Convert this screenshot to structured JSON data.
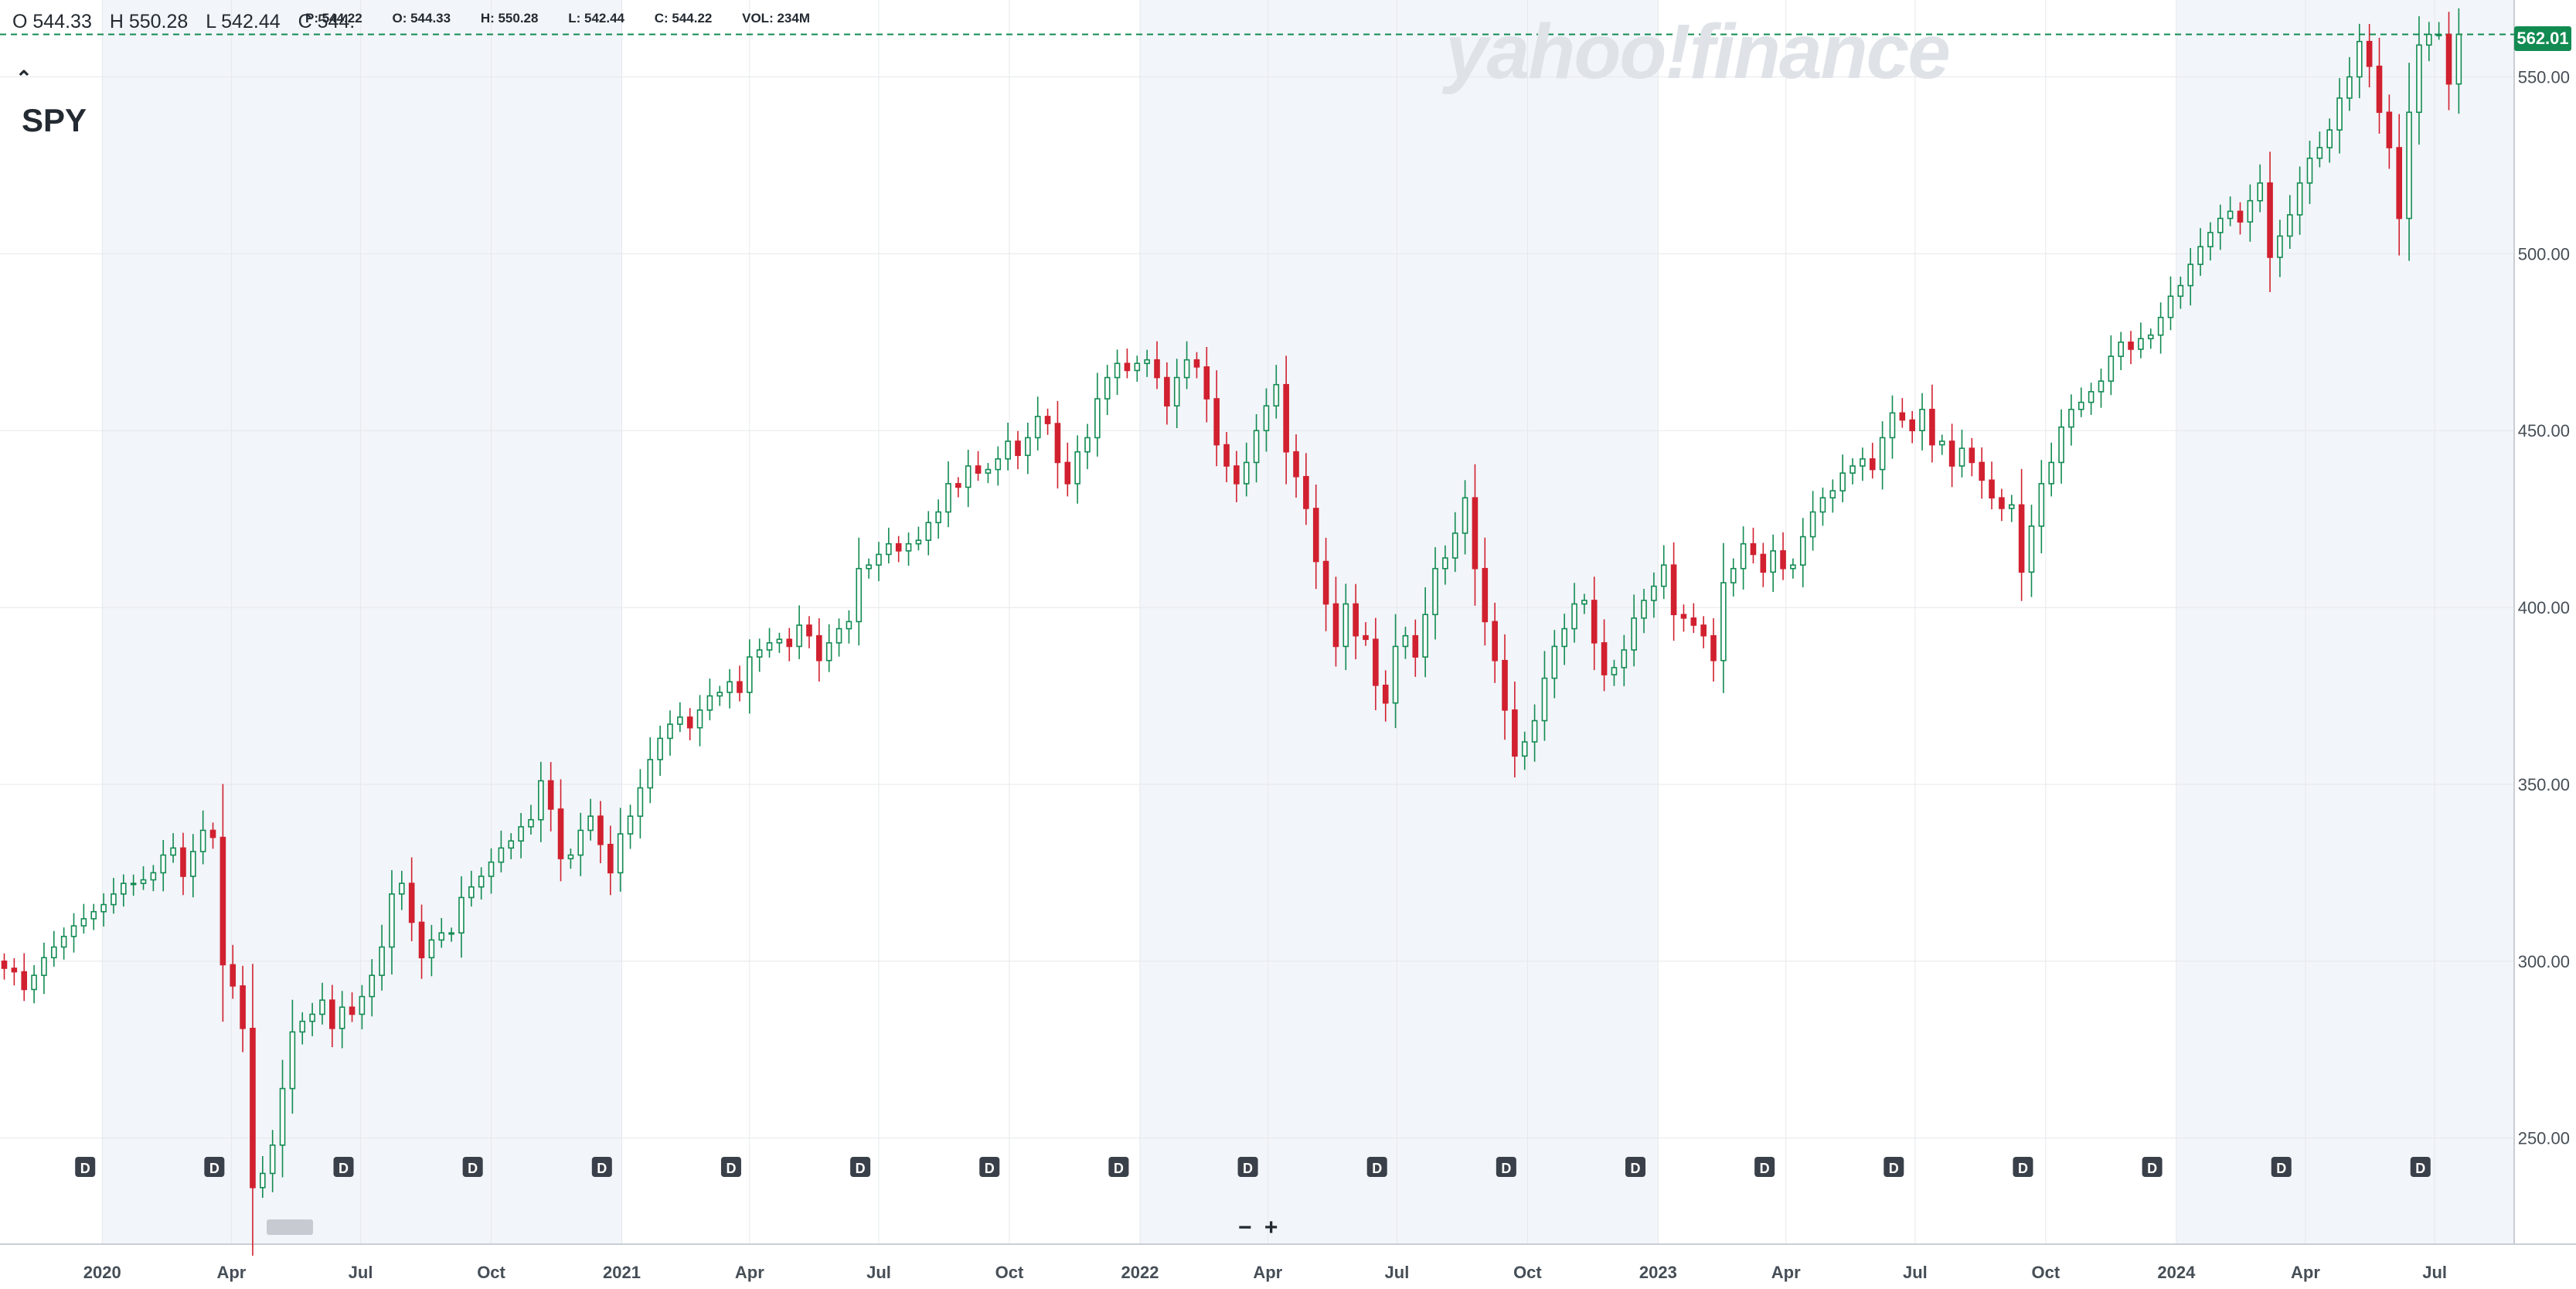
{
  "header": {
    "ohlc": {
      "o": "O 544.33",
      "h": "H 550.28",
      "l": "L 542.44",
      "c": "C 544."
    },
    "ohlc_small": {
      "p": "P: 544.22",
      "o": "O: 544.33",
      "h": "H: 550.28",
      "l": "L: 542.44",
      "c": "C: 544.22",
      "vol": "VOL: 234M"
    },
    "symbol": "SPY",
    "collapse_icon": "chevron-up-icon",
    "watermark": "yahoo!finance"
  },
  "current_price": "562.01",
  "zoom": {
    "minus": "−",
    "plus": "+"
  },
  "colors": {
    "up": "#128b52",
    "down": "#d1202f",
    "shade": "#f2f5f9",
    "grid": "#e6e8eb",
    "price_line": "#128b52"
  },
  "chart_data": {
    "type": "candlestick",
    "title": "",
    "xlabel": "",
    "ylabel": "",
    "ylim": [
      220,
      563
    ],
    "xlim": [
      "2019-10-21",
      "2024-08-26"
    ],
    "y_ticks": [
      "250.00",
      "300.00",
      "350.00",
      "400.00",
      "450.00",
      "500.00",
      "550.00"
    ],
    "x_ticks": [
      {
        "label": "2020",
        "date": "2020-01-01"
      },
      {
        "label": "Apr",
        "date": "2020-04-01"
      },
      {
        "label": "Jul",
        "date": "2020-07-01"
      },
      {
        "label": "Oct",
        "date": "2020-10-01"
      },
      {
        "label": "2021",
        "date": "2021-01-01"
      },
      {
        "label": "Apr",
        "date": "2021-04-01"
      },
      {
        "label": "Jul",
        "date": "2021-07-01"
      },
      {
        "label": "Oct",
        "date": "2021-10-01"
      },
      {
        "label": "2022",
        "date": "2022-01-01"
      },
      {
        "label": "Apr",
        "date": "2022-04-01"
      },
      {
        "label": "Jul",
        "date": "2022-07-01"
      },
      {
        "label": "Oct",
        "date": "2022-10-01"
      },
      {
        "label": "2023",
        "date": "2023-01-01"
      },
      {
        "label": "Apr",
        "date": "2023-04-01"
      },
      {
        "label": "Jul",
        "date": "2023-07-01"
      },
      {
        "label": "Oct",
        "date": "2023-10-01"
      },
      {
        "label": "2024",
        "date": "2024-01-01"
      },
      {
        "label": "Apr",
        "date": "2024-04-01"
      },
      {
        "label": "Jul",
        "date": "2024-07-01"
      }
    ],
    "shaded_years": [
      [
        "2020-01-01",
        "2021-01-01"
      ],
      [
        "2022-01-01",
        "2023-01-01"
      ],
      [
        "2024-01-01",
        "2024-08-26"
      ]
    ],
    "dividend_markers": {
      "label": "D",
      "dates": [
        "2019-12-20",
        "2020-03-20",
        "2020-06-19",
        "2020-09-18",
        "2020-12-18",
        "2021-03-19",
        "2021-06-18",
        "2021-09-17",
        "2021-12-17",
        "2022-03-18",
        "2022-06-17",
        "2022-09-16",
        "2022-12-16",
        "2023-03-17",
        "2023-06-16",
        "2023-09-15",
        "2023-12-15",
        "2024-03-15",
        "2024-06-21"
      ]
    },
    "last_price": 562.01,
    "weekly_close_start": 300,
    "weekly_closes": [
      298,
      297,
      292,
      296,
      301,
      304,
      307,
      310,
      312,
      314,
      316,
      319,
      322,
      322,
      323,
      325,
      330,
      332,
      324,
      331,
      337,
      335,
      299,
      293,
      281,
      236,
      240,
      248,
      264,
      280,
      283,
      285,
      289,
      281,
      287,
      285,
      290,
      296,
      304,
      319,
      322,
      311,
      301,
      306,
      308,
      308,
      318,
      321,
      324,
      328,
      332,
      334,
      338,
      340,
      351,
      343,
      329,
      330,
      337,
      341,
      333,
      325,
      336,
      341,
      349,
      357,
      363,
      367,
      369,
      366,
      371,
      375,
      376,
      379,
      376,
      386,
      388,
      390,
      391,
      389,
      395,
      392,
      385,
      390,
      394,
      396,
      411,
      412,
      415,
      418,
      416,
      418,
      419,
      424,
      427,
      435,
      434,
      440,
      438,
      439,
      442,
      447,
      443,
      448,
      454,
      452,
      441,
      435,
      444,
      448,
      459,
      465,
      469,
      467,
      469,
      470,
      465,
      457,
      465,
      470,
      468,
      459,
      446,
      440,
      435,
      441,
      450,
      457,
      463,
      444,
      437,
      428,
      413,
      401,
      389,
      401,
      392,
      391,
      378,
      373,
      389,
      392,
      386,
      398,
      411,
      414,
      421,
      431,
      411,
      396,
      385,
      371,
      358,
      362,
      368,
      380,
      389,
      394,
      401,
      402,
      390,
      381,
      383,
      388,
      397,
      402,
      406,
      412,
      398,
      397,
      395,
      392,
      385,
      407,
      411,
      418,
      415,
      410,
      416,
      411,
      412,
      420,
      427,
      431,
      433,
      438,
      440,
      442,
      439,
      448,
      455,
      453,
      450,
      456,
      446,
      447,
      440,
      445,
      441,
      436,
      431,
      428,
      429,
      410,
      423,
      435,
      441,
      451,
      456,
      458,
      461,
      464,
      471,
      475,
      473,
      476,
      477,
      482,
      488,
      491,
      497,
      502,
      506,
      510,
      512,
      509,
      515,
      520,
      499,
      505,
      511,
      520,
      527,
      530,
      535,
      544,
      550,
      560,
      553,
      540,
      530,
      510,
      540,
      559,
      562,
      562,
      548,
      562
    ],
    "volume_caption": "VOL: 234M"
  }
}
